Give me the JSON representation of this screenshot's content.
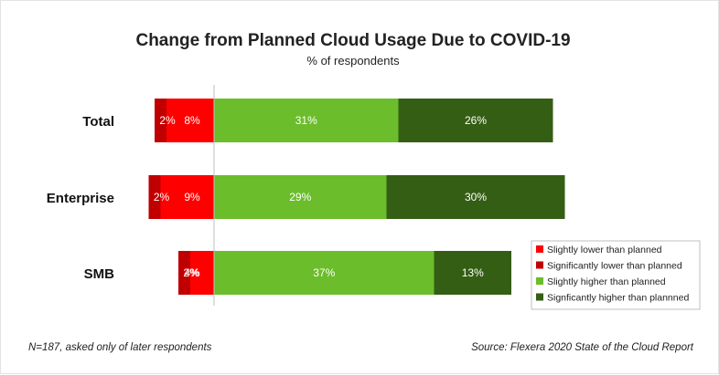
{
  "chart_data": {
    "type": "bar",
    "orientation": "horizontal",
    "stacked": "diverging",
    "title": "Change from Planned Cloud Usage Due to COVID-19",
    "subtitle": "% of respondents",
    "categories": [
      "Total",
      "Enterprise",
      "SMB"
    ],
    "series": [
      {
        "name": "Slightly lower than planned",
        "direction": "negative",
        "color": "#ff0000",
        "values": [
          8,
          9,
          4
        ],
        "labels": [
          "8%",
          "9%",
          "4%"
        ]
      },
      {
        "name": "Significantly lower than planned",
        "direction": "negative",
        "color": "#c00000",
        "values": [
          2,
          2,
          2
        ],
        "labels": [
          "2%",
          "2%",
          "2%"
        ]
      },
      {
        "name": "Slightly higher than planned",
        "direction": "positive",
        "color": "#6bbd2c",
        "values": [
          31,
          29,
          37
        ],
        "labels": [
          "31%",
          "29%",
          "37%"
        ]
      },
      {
        "name": "Signficantly higher than plannned",
        "direction": "positive",
        "color": "#355e15",
        "values": [
          26,
          30,
          13
        ],
        "labels": [
          "26%",
          "30%",
          "13%"
        ]
      }
    ],
    "legend_position": "bottom-right",
    "grid": false,
    "baseline": 0,
    "footnote": "N=187, asked only of later respondents",
    "source": "Source: Flexera 2020 State of the Cloud Report"
  }
}
